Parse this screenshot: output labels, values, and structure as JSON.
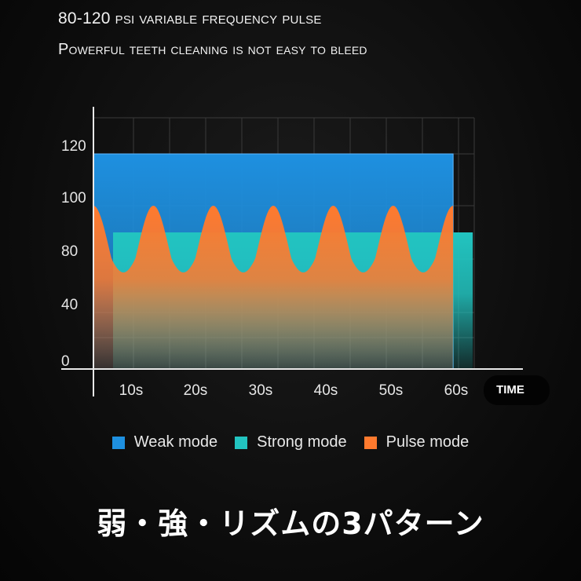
{
  "header": {
    "line1": "80-120 psi variable frequency pulse",
    "line2": "Powerful teeth cleaning is not easy to bleed"
  },
  "chart_data": {
    "type": "area",
    "y_tick_labels": [
      "0",
      "40",
      "80",
      "100",
      "120"
    ],
    "x_tick_labels": [
      "10s",
      "20s",
      "30s",
      "40s",
      "50s",
      "60s"
    ],
    "x_axis_label": "TIME",
    "grid": true,
    "series": [
      {
        "name": "Weak mode",
        "color": "#1e90e0",
        "x_range": [
          0,
          55
        ],
        "value": 120
      },
      {
        "name": "Strong mode",
        "color": "#22c4c0",
        "x_range": [
          3,
          58
        ],
        "value": 90
      },
      {
        "name": "Pulse mode",
        "color": "#ff7a2e",
        "x_range": [
          0,
          55
        ],
        "min": 70,
        "max": 100,
        "cycles": 6
      }
    ]
  },
  "legend": [
    {
      "label": "Weak mode",
      "color": "#1e90e0"
    },
    {
      "label": "Strong mode",
      "color": "#22c4c0"
    },
    {
      "label": "Pulse mode",
      "color": "#ff7a2e"
    }
  ],
  "caption": "弱・強・リズムの3パターン"
}
